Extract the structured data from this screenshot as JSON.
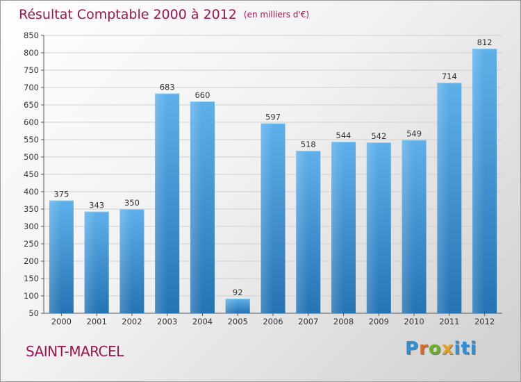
{
  "header": {
    "title": "Résultat Comptable 2000 à 2012",
    "subtitle": "(en milliers d'€)"
  },
  "footer": {
    "city": "SAINT-MARCEL",
    "logo_text": "Proxiti"
  },
  "colors": {
    "title": "#a0144e",
    "bar_top": "#5fb0ea",
    "bar_bottom": "#2673b3",
    "grid": "#cfcfcf",
    "axis_text": "#333333"
  },
  "chart_data": {
    "type": "bar",
    "title": "Résultat Comptable 2000 à 2012",
    "subtitle": "(en milliers d'€)",
    "xlabel": "",
    "ylabel": "",
    "categories": [
      "2000",
      "2001",
      "2002",
      "2003",
      "2004",
      "2005",
      "2006",
      "2007",
      "2008",
      "2009",
      "2010",
      "2011",
      "2012"
    ],
    "values": [
      375,
      343,
      350,
      683,
      660,
      92,
      597,
      518,
      544,
      542,
      549,
      714,
      812
    ],
    "data_labels": [
      "375",
      "343",
      "350",
      "683",
      "660",
      "92",
      "597",
      "518",
      "544",
      "542",
      "549",
      "714",
      "812"
    ],
    "ylim": [
      50,
      850
    ],
    "yticks": [
      50,
      100,
      150,
      200,
      250,
      300,
      350,
      400,
      450,
      500,
      550,
      600,
      650,
      700,
      750,
      800,
      850
    ],
    "grid": true,
    "legend": "none"
  }
}
